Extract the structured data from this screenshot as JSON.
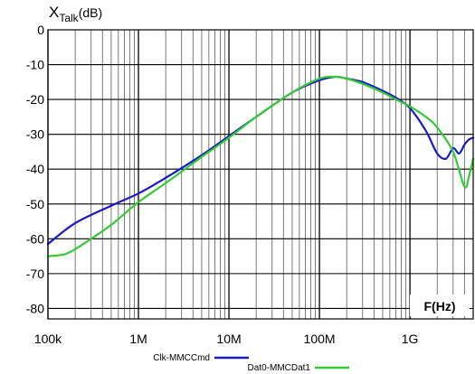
{
  "chart_data": {
    "type": "line",
    "title": "",
    "ylabel": {
      "main": "X",
      "sub": "Talk",
      "unit": "(dB)"
    },
    "xlabel": "F(Hz)",
    "x_scale": "log",
    "xlim": [
      100000,
      5000000000
    ],
    "ylim": [
      -83,
      0
    ],
    "grid": true,
    "y_ticks": [
      0,
      -10,
      -20,
      -30,
      -40,
      -50,
      -60,
      -70,
      -80
    ],
    "y_tick_labels": [
      "0",
      "-10",
      "-20",
      "-30",
      "-40",
      "-50",
      "-60",
      "-70",
      "-80"
    ],
    "x_ticks": [
      100000,
      1000000,
      10000000,
      100000000,
      1000000000
    ],
    "x_tick_labels": [
      "100k",
      "1M",
      "10M",
      "100M",
      "1G"
    ],
    "legend_position": "bottom",
    "series": [
      {
        "name": "Clk-MMCCmd",
        "color": "#1a1acc",
        "x": [
          100000,
          200000,
          500000,
          1000000,
          2000000,
          5000000,
          10000000,
          20000000,
          50000000,
          100000000,
          150000000,
          200000000,
          300000000,
          500000000,
          700000000,
          1000000000,
          1500000000,
          2000000000,
          2500000000,
          3000000000,
          3500000000,
          4000000000,
          4500000000,
          5000000000
        ],
        "y": [
          -61.5,
          -55.5,
          -50.5,
          -47,
          -42.5,
          -36,
          -30.5,
          -25,
          -18,
          -14.5,
          -13.5,
          -14,
          -15,
          -17.5,
          -19.5,
          -22.5,
          -29,
          -35.5,
          -37,
          -34,
          -35.5,
          -33,
          -31.5,
          -31
        ]
      },
      {
        "name": "Dat0-MMCDat1",
        "color": "#33cc33",
        "x": [
          100000,
          150000,
          200000,
          300000,
          500000,
          1000000,
          2000000,
          5000000,
          10000000,
          20000000,
          50000000,
          100000000,
          150000000,
          200000000,
          300000000,
          500000000,
          700000000,
          1000000000,
          1500000000,
          2000000000,
          3000000000,
          4000000000,
          4500000000,
          5000000000
        ],
        "y": [
          -65,
          -64.5,
          -63,
          -60,
          -56,
          -49.5,
          -44,
          -36.5,
          -31,
          -25,
          -18,
          -14,
          -13.5,
          -14,
          -15.5,
          -18,
          -20,
          -22,
          -25,
          -28,
          -35,
          -45,
          -42,
          -37
        ]
      }
    ]
  }
}
